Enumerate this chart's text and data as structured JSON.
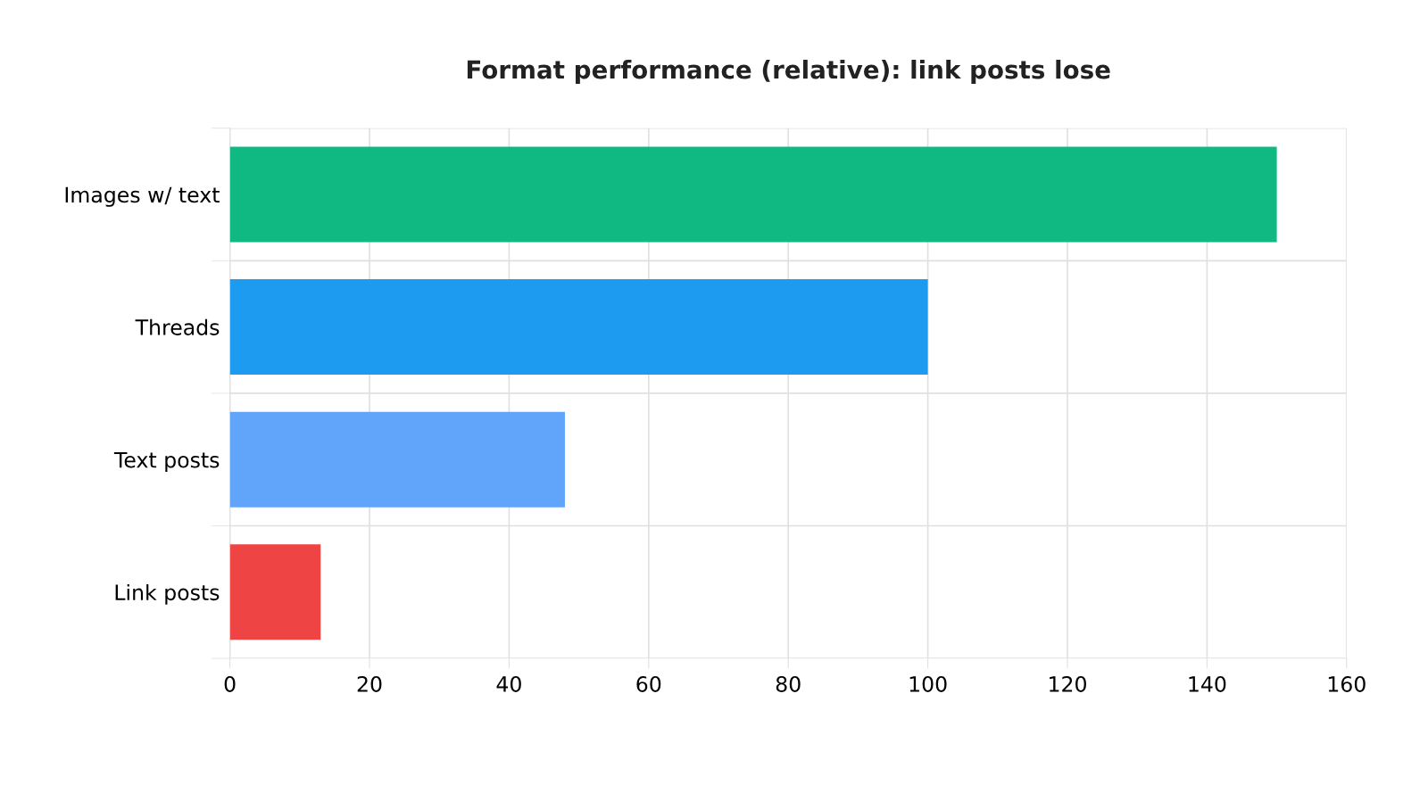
{
  "chart_data": {
    "type": "bar",
    "orientation": "horizontal",
    "title": "Format performance (relative): link posts lose",
    "categories": [
      "Images w/ text",
      "Threads",
      "Text posts",
      "Link posts"
    ],
    "values": [
      150,
      100,
      48,
      13
    ],
    "colors": [
      "#10b981",
      "#1d9bf0",
      "#60a5fa",
      "#ef4444"
    ],
    "xlim": [
      0,
      160
    ],
    "xticks": [
      0,
      20,
      40,
      60,
      80,
      100,
      120,
      140,
      160
    ],
    "grid": true
  }
}
